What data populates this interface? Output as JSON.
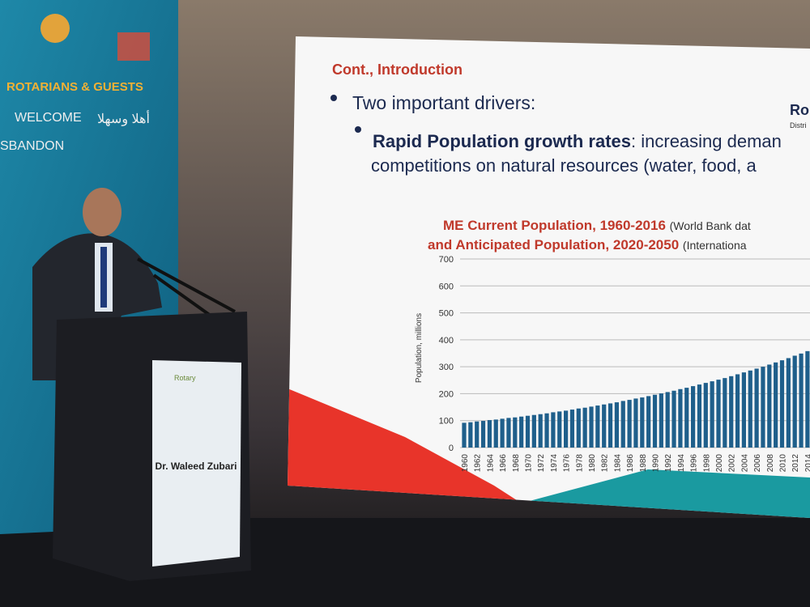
{
  "banner": {
    "heading": "ROTARIANS & GUESTS",
    "welcome": "WELCOME",
    "arabic": "أهلا وسهلا",
    "partial": "SBANDON"
  },
  "podium": {
    "logo": "Rotary",
    "name": "Dr. Waleed Zubari"
  },
  "slide": {
    "heading": "Cont., Introduction",
    "bullet1": "Two important drivers:",
    "bullet2_bold": "Rapid Population growth rates",
    "bullet2_rest": ": increasing deman",
    "bullet2_line2": "competitions on natural resources (water, food, a",
    "logo": "Ro",
    "logo_sub": "Distri"
  },
  "chart_data": {
    "type": "bar",
    "title_bold": "ME Current Population, 1960-2016",
    "title_note": "(World Bank dat",
    "subtitle_bold": "and Anticipated Population, 2020-2050",
    "subtitle_note": "(Internationa",
    "ylabel": "Population, millions",
    "categories": [
      "1960",
      null,
      "1962",
      null,
      "1964",
      null,
      "1966",
      null,
      "1968",
      null,
      "1970",
      null,
      "1972",
      null,
      "1974",
      null,
      "1976",
      null,
      "1978",
      null,
      "1980",
      null,
      "1982",
      null,
      "1984",
      null,
      "1986",
      null,
      "1988",
      null,
      "1990",
      null,
      "1992",
      null,
      "1994",
      null,
      "1996",
      null,
      "1998",
      null,
      "2000",
      null,
      "2002",
      null,
      "2004",
      null,
      "2006",
      null,
      "2008",
      null,
      "2010",
      null,
      "2012",
      null,
      "2014"
    ],
    "values": [
      92,
      94,
      97,
      99,
      102,
      104,
      107,
      110,
      112,
      115,
      118,
      121,
      124,
      127,
      131,
      134,
      137,
      141,
      145,
      148,
      152,
      156,
      160,
      164,
      168,
      173,
      177,
      182,
      186,
      191,
      196,
      201,
      206,
      211,
      217,
      222,
      228,
      234,
      240,
      246,
      252,
      258,
      265,
      272,
      279,
      286,
      293,
      300,
      308,
      316,
      324,
      332,
      341,
      349,
      358
    ],
    "color": "#1f5f8b",
    "ylim": [
      0,
      700
    ],
    "yticks": [
      0,
      100,
      200,
      300,
      400,
      500,
      600,
      700
    ],
    "grid": true
  }
}
